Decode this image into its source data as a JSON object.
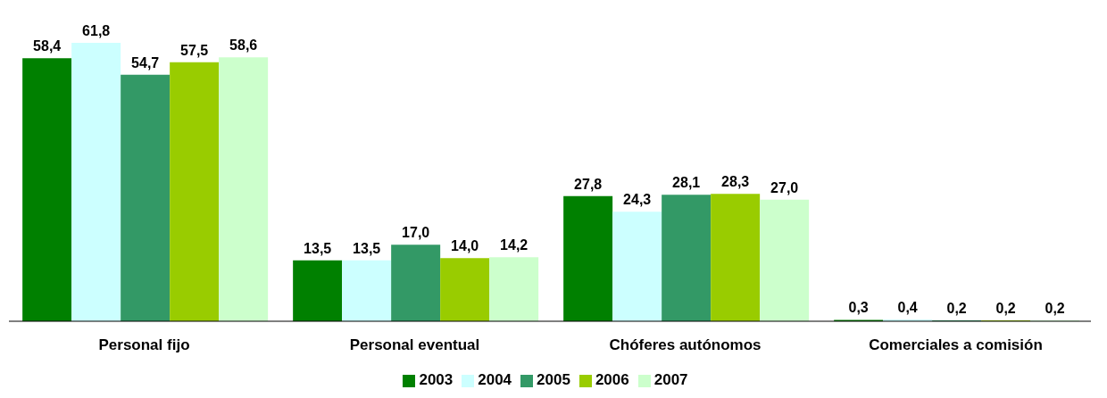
{
  "chart_data": {
    "type": "bar",
    "categories": [
      "Personal fijo",
      "Personal eventual",
      "Chóferes autónomos",
      "Comerciales a comisión"
    ],
    "series": [
      {
        "name": "2003",
        "color": "#008000",
        "values": [
          58.4,
          13.5,
          27.8,
          0.3
        ],
        "value_labels": [
          "58,4",
          "13,5",
          "27,8",
          "0,3"
        ]
      },
      {
        "name": "2004",
        "color": "#ccffff",
        "values": [
          61.8,
          13.5,
          24.3,
          0.4
        ],
        "value_labels": [
          "61,8",
          "13,5",
          "24,3",
          "0,4"
        ]
      },
      {
        "name": "2005",
        "color": "#339966",
        "values": [
          54.7,
          17.0,
          28.1,
          0.2
        ],
        "value_labels": [
          "54,7",
          "17,0",
          "28,1",
          "0,2"
        ]
      },
      {
        "name": "2006",
        "color": "#99cc00",
        "values": [
          57.5,
          14.0,
          28.3,
          0.2
        ],
        "value_labels": [
          "57,5",
          "14,0",
          "28,3",
          "0,2"
        ]
      },
      {
        "name": "2007",
        "color": "#ccffcc",
        "values": [
          58.6,
          14.2,
          27.0,
          0.2
        ],
        "value_labels": [
          "58,6",
          "14,2",
          "27,0",
          "0,2"
        ]
      }
    ],
    "grid": false,
    "legend": "bottom"
  }
}
